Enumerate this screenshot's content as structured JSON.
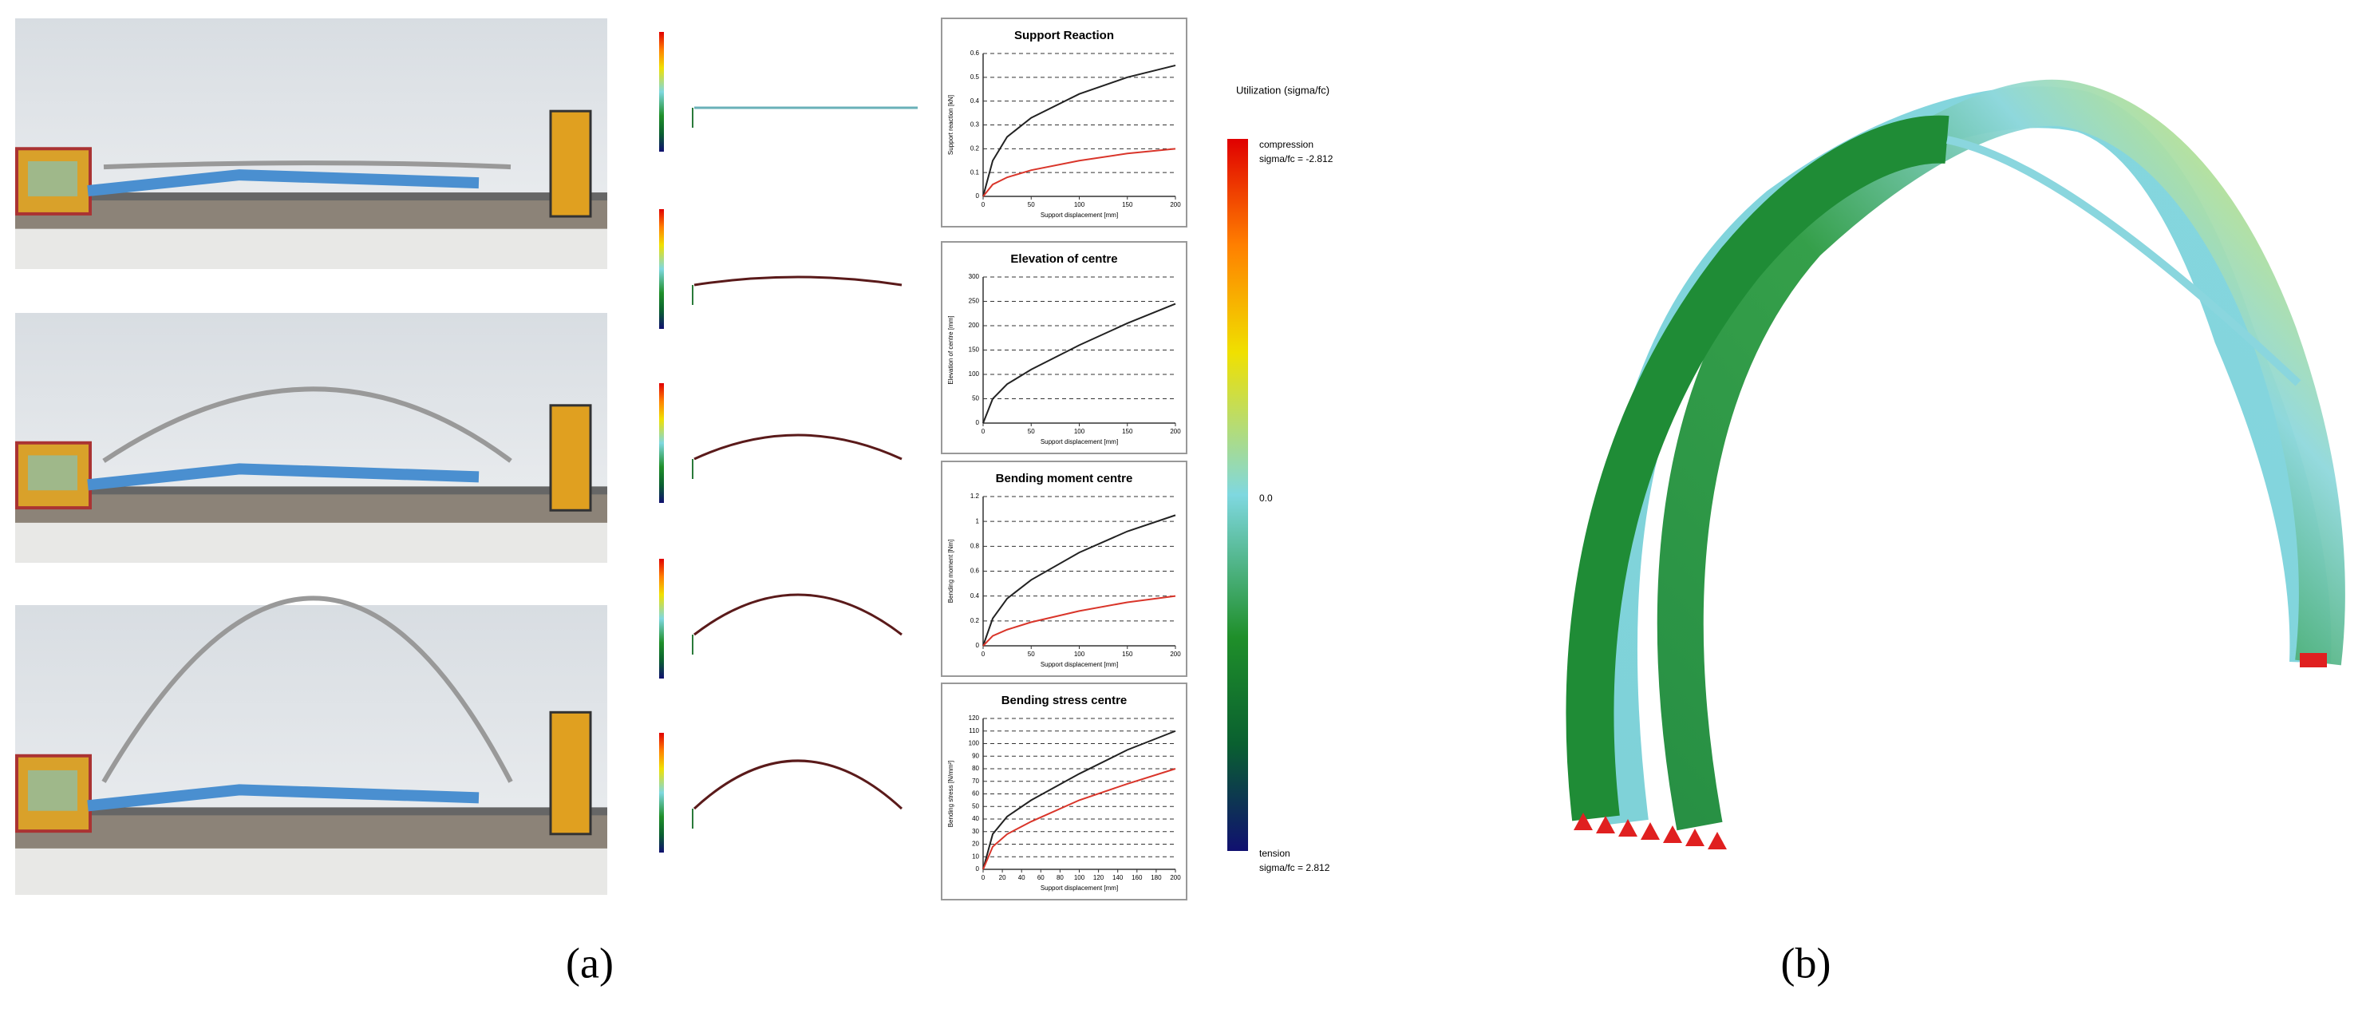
{
  "chart_data": [
    {
      "type": "line",
      "title": "Support Reaction",
      "x_label": "Support displacement [mm]",
      "y_label": "Support reaction [kN]",
      "x": [
        0,
        10,
        25,
        50,
        100,
        150,
        200
      ],
      "xlim": [
        0,
        200
      ],
      "xticks": [
        0,
        50,
        100,
        150,
        200
      ],
      "ylim": [
        0,
        0.6
      ],
      "yticks": [
        0,
        0.1,
        0.2,
        0.3,
        0.4,
        0.5,
        0.6
      ],
      "grid": true,
      "series": [
        {
          "color": "#222222",
          "values": [
            0,
            0.15,
            0.25,
            0.33,
            0.43,
            0.5,
            0.55
          ]
        },
        {
          "color": "#d9352a",
          "values": [
            0,
            0.05,
            0.08,
            0.11,
            0.15,
            0.18,
            0.2
          ]
        }
      ]
    },
    {
      "type": "line",
      "title": "Elevation of centre",
      "x_label": "Support displacement [mm]",
      "y_label": "Elevation of centre [mm]",
      "x": [
        0,
        10,
        25,
        50,
        100,
        150,
        200
      ],
      "xlim": [
        0,
        200
      ],
      "xticks": [
        0,
        50,
        100,
        150,
        200
      ],
      "ylim": [
        0,
        300
      ],
      "yticks": [
        0,
        50,
        100,
        150,
        200,
        250,
        300
      ],
      "grid": true,
      "series": [
        {
          "color": "#222222",
          "values": [
            0,
            50,
            80,
            110,
            160,
            205,
            245
          ]
        }
      ]
    },
    {
      "type": "line",
      "title": "Bending moment centre",
      "x_label": "Support displacement [mm]",
      "y_label": "Bending moment [Nm]",
      "x": [
        0,
        10,
        25,
        50,
        100,
        150,
        200
      ],
      "xlim": [
        0,
        200
      ],
      "xticks": [
        0,
        50,
        100,
        150,
        200
      ],
      "ylim": [
        0,
        1.2
      ],
      "yticks": [
        0,
        0.2,
        0.4,
        0.6,
        0.8,
        1,
        1.2
      ],
      "grid": true,
      "series": [
        {
          "color": "#222222",
          "values": [
            0,
            0.22,
            0.38,
            0.53,
            0.75,
            0.92,
            1.05
          ]
        },
        {
          "color": "#d9352a",
          "values": [
            0,
            0.08,
            0.13,
            0.19,
            0.28,
            0.35,
            0.4
          ]
        }
      ]
    },
    {
      "type": "line",
      "title": "Bending stress centre",
      "x_label": "Support displacement [mm]",
      "y_label": "Bending stress [N/mm²]",
      "x": [
        0,
        10,
        25,
        50,
        100,
        150,
        200
      ],
      "xlim": [
        0,
        200
      ],
      "xticks": [
        0,
        20,
        40,
        60,
        80,
        100,
        120,
        140,
        160,
        180,
        200
      ],
      "ylim": [
        0,
        120
      ],
      "yticks": [
        0,
        10,
        20,
        30,
        40,
        50,
        60,
        70,
        80,
        90,
        100,
        110,
        120
      ],
      "grid": true,
      "series": [
        {
          "color": "#222222",
          "values": [
            0,
            28,
            42,
            55,
            76,
            95,
            110
          ]
        },
        {
          "color": "#d9352a",
          "values": [
            0,
            18,
            28,
            38,
            55,
            68,
            80
          ]
        }
      ]
    }
  ],
  "legend": {
    "title": "Utilization (sigma/fc)",
    "compression": "compression",
    "compression_value": "sigma/fc = -2.812",
    "zero": "0.0",
    "tension": "tension",
    "tension_value": "sigma/fc = 2.812"
  },
  "captions": [
    "(a)",
    "(b)"
  ]
}
